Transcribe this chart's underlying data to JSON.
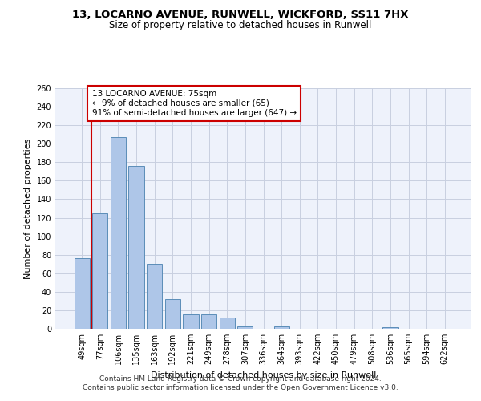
{
  "title_line1": "13, LOCARNO AVENUE, RUNWELL, WICKFORD, SS11 7HX",
  "title_line2": "Size of property relative to detached houses in Runwell",
  "xlabel": "Distribution of detached houses by size in Runwell",
  "ylabel": "Number of detached properties",
  "footer_line1": "Contains HM Land Registry data © Crown copyright and database right 2024.",
  "footer_line2": "Contains public sector information licensed under the Open Government Licence v3.0.",
  "annotation_line1": "13 LOCARNO AVENUE: 75sqm",
  "annotation_line2": "← 9% of detached houses are smaller (65)",
  "annotation_line3": "91% of semi-detached houses are larger (647) →",
  "categories": [
    "49sqm",
    "77sqm",
    "106sqm",
    "135sqm",
    "163sqm",
    "192sqm",
    "221sqm",
    "249sqm",
    "278sqm",
    "307sqm",
    "336sqm",
    "364sqm",
    "393sqm",
    "422sqm",
    "450sqm",
    "479sqm",
    "508sqm",
    "536sqm",
    "565sqm",
    "594sqm",
    "622sqm"
  ],
  "values": [
    76,
    125,
    207,
    176,
    70,
    32,
    16,
    16,
    12,
    3,
    0,
    3,
    0,
    0,
    0,
    0,
    0,
    2,
    0,
    0,
    0
  ],
  "bar_color": "#aec6e8",
  "bar_edge_color": "#5b8db8",
  "vline_color": "#cc0000",
  "annotation_box_color": "#cc0000",
  "bg_color": "#eef2fb",
  "ylim": [
    0,
    260
  ],
  "yticks": [
    0,
    20,
    40,
    60,
    80,
    100,
    120,
    140,
    160,
    180,
    200,
    220,
    240,
    260
  ],
  "grid_color": "#c8cfe0",
  "title_fontsize": 9.5,
  "subtitle_fontsize": 8.5,
  "axis_label_fontsize": 8,
  "tick_fontsize": 7,
  "footer_fontsize": 6.5,
  "annotation_fontsize": 7.5
}
